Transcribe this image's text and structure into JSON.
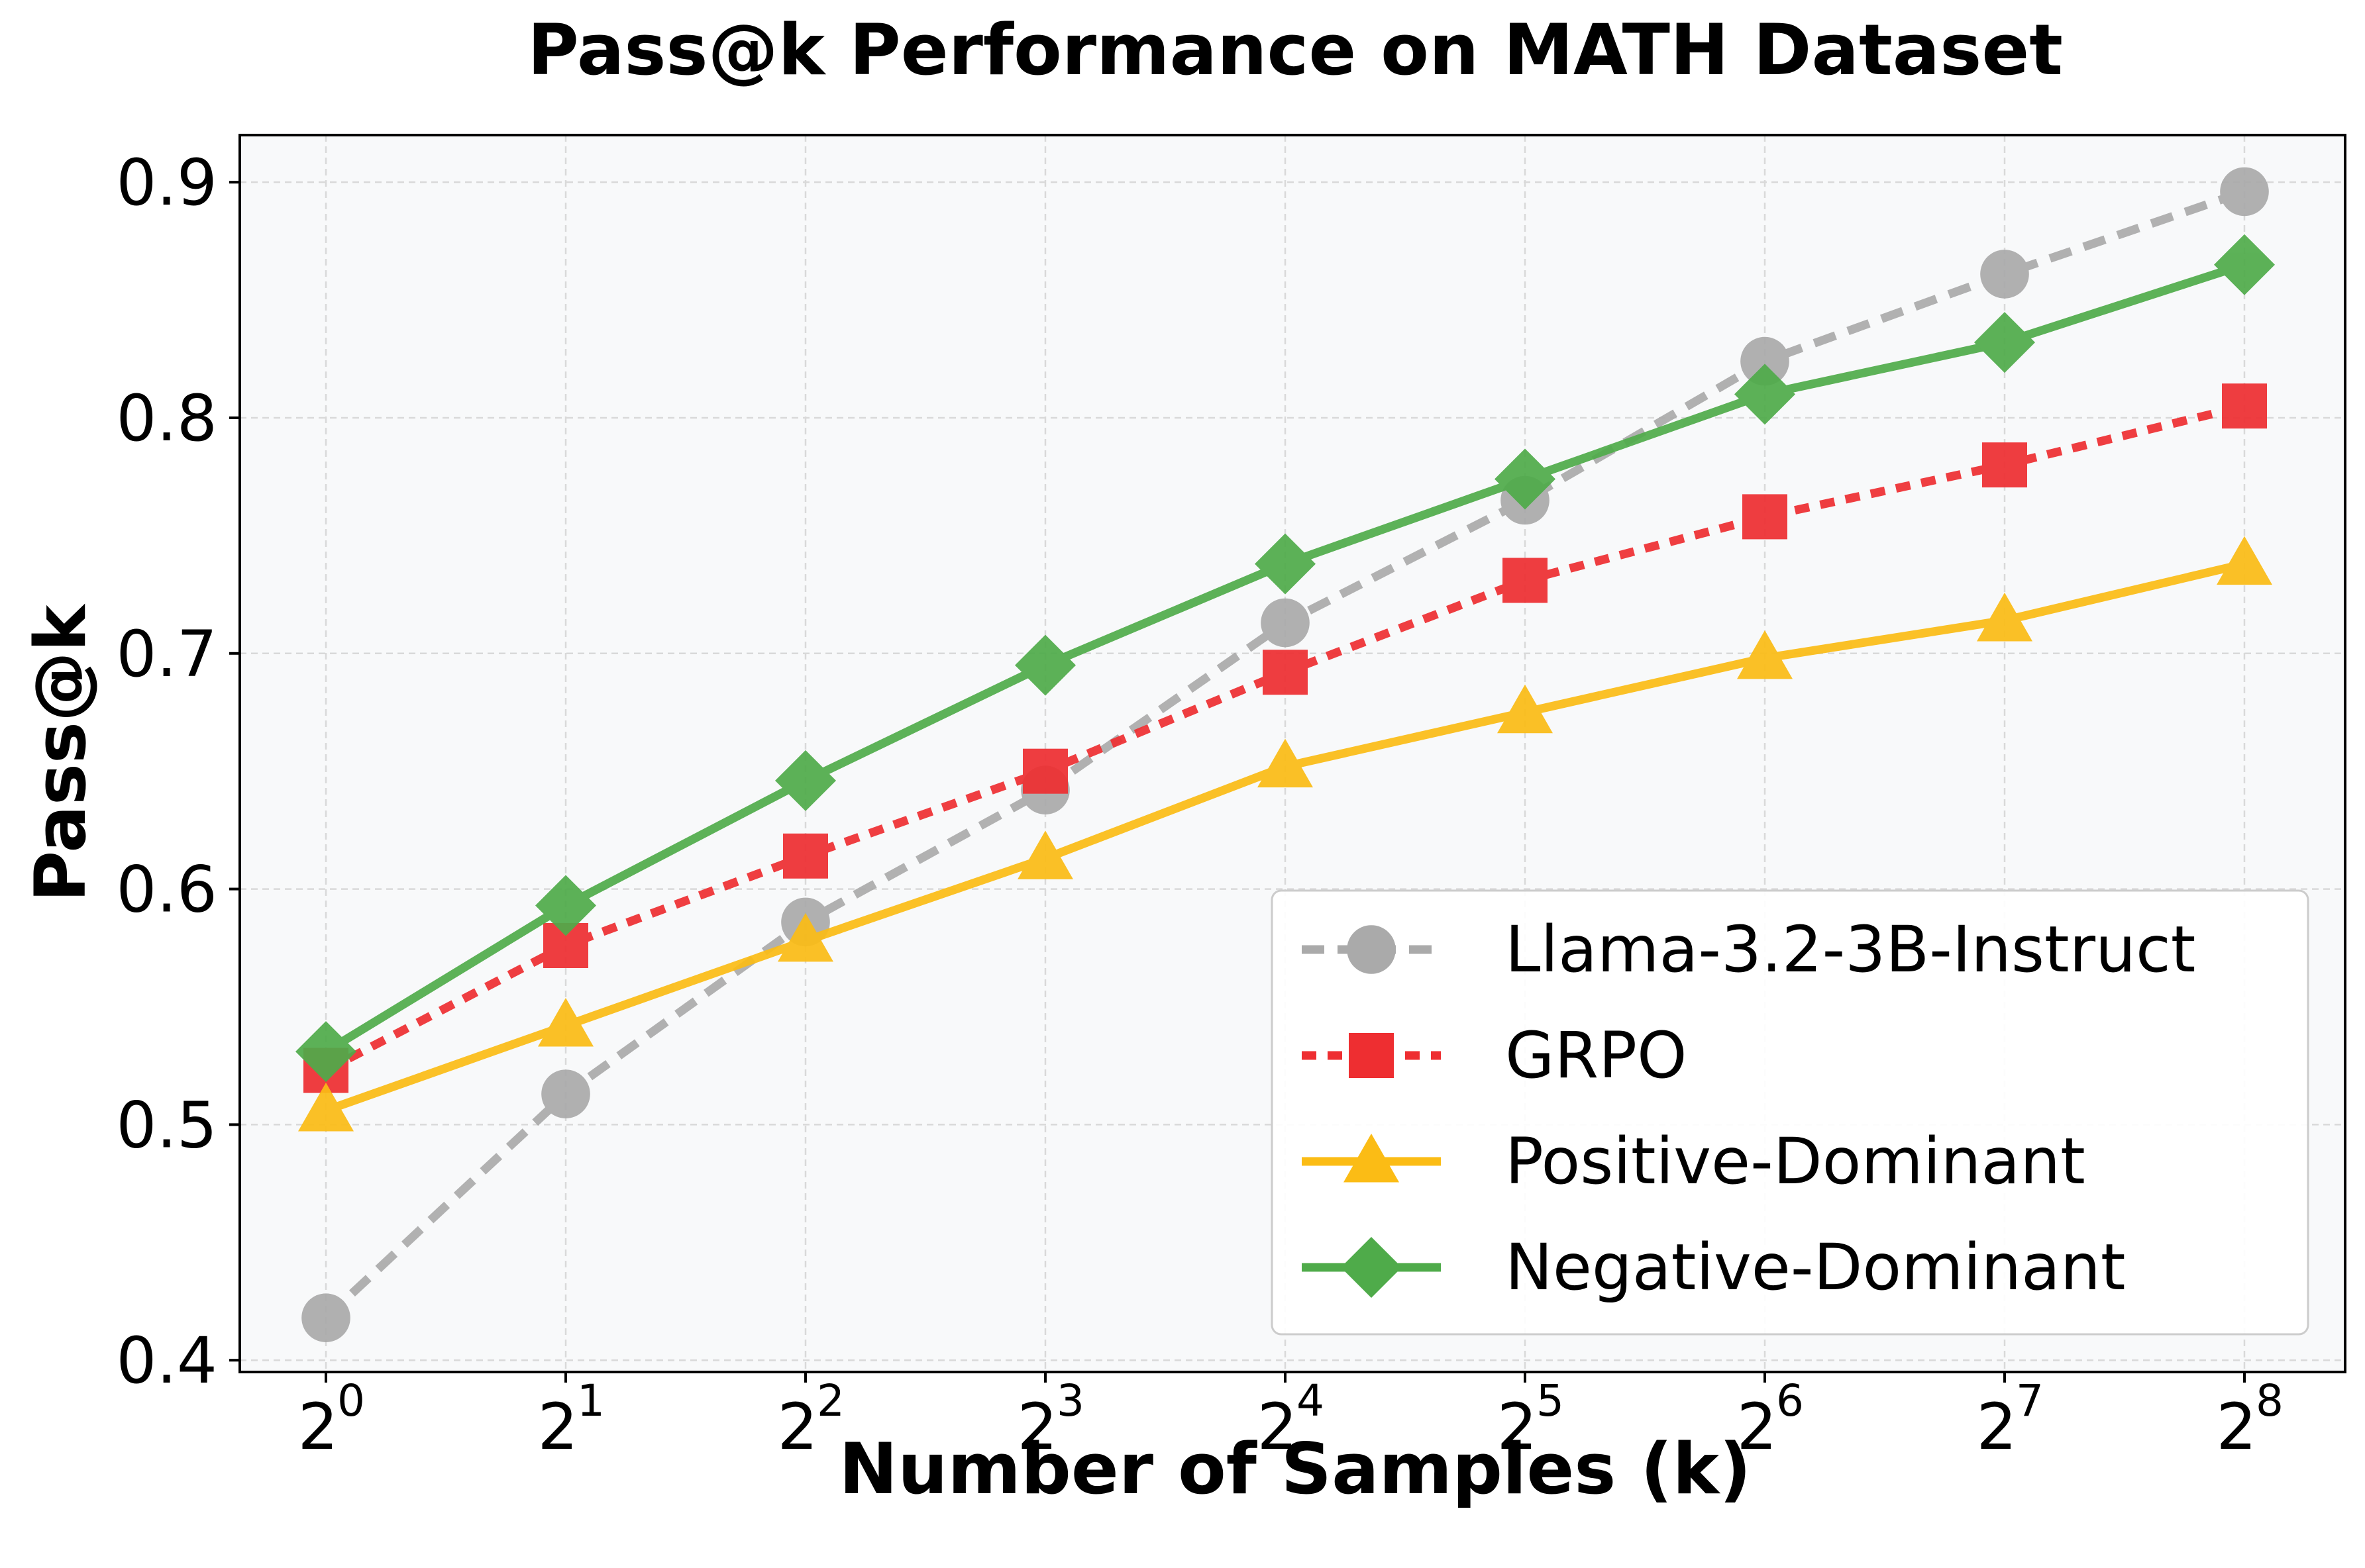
{
  "chart_data": {
    "type": "line",
    "title": "Pass@k Performance on MATH Dataset",
    "xlabel": "Number of Samples (k)",
    "ylabel": "Pass@k",
    "x_base": "2",
    "x_exponents": [
      "0",
      "1",
      "2",
      "3",
      "4",
      "5",
      "6",
      "7",
      "8"
    ],
    "ylim": [
      0.395,
      0.92
    ],
    "yticks": [
      0.4,
      0.5,
      0.6,
      0.7,
      0.8,
      0.9
    ],
    "ytick_labels": [
      "0.4",
      "0.5",
      "0.6",
      "0.7",
      "0.8",
      "0.9"
    ],
    "grid": true,
    "legend_position": "bottom-right",
    "background": "#f8f9fa",
    "series": [
      {
        "name": "Llama-3.2-3B-Instruct",
        "color": "#aaaaaa",
        "line_style": "dashed",
        "marker": "circle",
        "values": [
          0.418,
          0.513,
          0.586,
          0.642,
          0.713,
          0.765,
          0.824,
          0.861,
          0.896
        ]
      },
      {
        "name": "GRPO",
        "color": "#ee2e31",
        "line_style": "dotted",
        "marker": "square",
        "values": [
          0.523,
          0.576,
          0.614,
          0.65,
          0.692,
          0.731,
          0.758,
          0.78,
          0.805
        ]
      },
      {
        "name": "Positive-Dominant",
        "color": "#fbbc15",
        "line_style": "solid",
        "marker": "triangle",
        "values": [
          0.506,
          0.542,
          0.578,
          0.613,
          0.652,
          0.675,
          0.698,
          0.714,
          0.738
        ]
      },
      {
        "name": "Negative-Dominant",
        "color": "#4fab4a",
        "line_style": "solid",
        "marker": "diamond",
        "values": [
          0.531,
          0.593,
          0.646,
          0.695,
          0.738,
          0.774,
          0.81,
          0.832,
          0.865
        ]
      }
    ]
  }
}
